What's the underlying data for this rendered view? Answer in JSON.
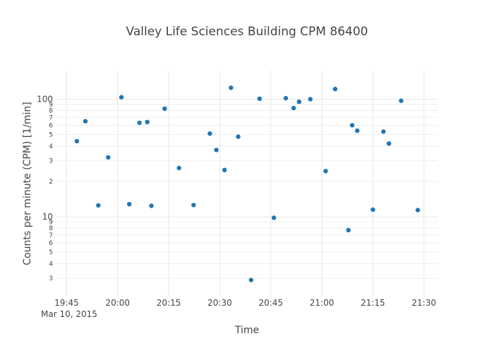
{
  "chart_data": {
    "type": "scatter",
    "title": "Valley Life Sciences Building CPM 86400",
    "xlabel": "Time",
    "ylabel": "Counts per minute (CPM) [1/min]",
    "x_date_label": "Mar 10, 2015",
    "x_ticks": [
      "19:45",
      "20:00",
      "20:15",
      "20:30",
      "20:45",
      "21:00",
      "21:15",
      "21:30"
    ],
    "x_tick_minutes": [
      1185,
      1200,
      1215,
      1230,
      1245,
      1260,
      1275,
      1290
    ],
    "x_range_minutes": [
      1182,
      1294
    ],
    "y_scale": "log",
    "y_range": [
      2.1,
      175
    ],
    "y_major_ticks": [
      {
        "value": 10,
        "label": "10"
      },
      {
        "value": 100,
        "label": "100"
      }
    ],
    "y_minor_ticks": [
      {
        "value": 3,
        "label": "3"
      },
      {
        "value": 4,
        "label": "4"
      },
      {
        "value": 5,
        "label": "5"
      },
      {
        "value": 6,
        "label": "6"
      },
      {
        "value": 7,
        "label": "7"
      },
      {
        "value": 8,
        "label": "8"
      },
      {
        "value": 9,
        "label": "9"
      },
      {
        "value": 20,
        "label": "2"
      },
      {
        "value": 30,
        "label": "3"
      },
      {
        "value": 40,
        "label": "4"
      },
      {
        "value": 50,
        "label": "5"
      },
      {
        "value": 60,
        "label": "6"
      },
      {
        "value": 70,
        "label": "7"
      },
      {
        "value": 80,
        "label": "8"
      },
      {
        "value": 90,
        "label": "9"
      }
    ],
    "marker_color": "#1f77b4",
    "points_minutes": [
      1188.0,
      1190.5,
      1194.3,
      1197.2,
      1201.1,
      1203.4,
      1206.4,
      1208.7,
      1209.9,
      1213.8,
      1218.0,
      1222.3,
      1227.1,
      1229.0,
      1231.4,
      1233.3,
      1235.4,
      1239.2,
      1241.7,
      1245.9,
      1249.4,
      1251.7,
      1253.3,
      1256.6,
      1261.1,
      1263.9,
      1267.8,
      1268.9,
      1270.4,
      1275.0,
      1278.1,
      1279.7,
      1283.3,
      1288.2
    ],
    "points_cpm": [
      44,
      65,
      12.5,
      32,
      104,
      12.8,
      63,
      64,
      12.4,
      83,
      26,
      12.6,
      51,
      37,
      25,
      125,
      48,
      2.9,
      101,
      9.8,
      102,
      84,
      95,
      100,
      24.5,
      122,
      7.7,
      60,
      54,
      11.5,
      53,
      42,
      97,
      11.4
    ]
  }
}
